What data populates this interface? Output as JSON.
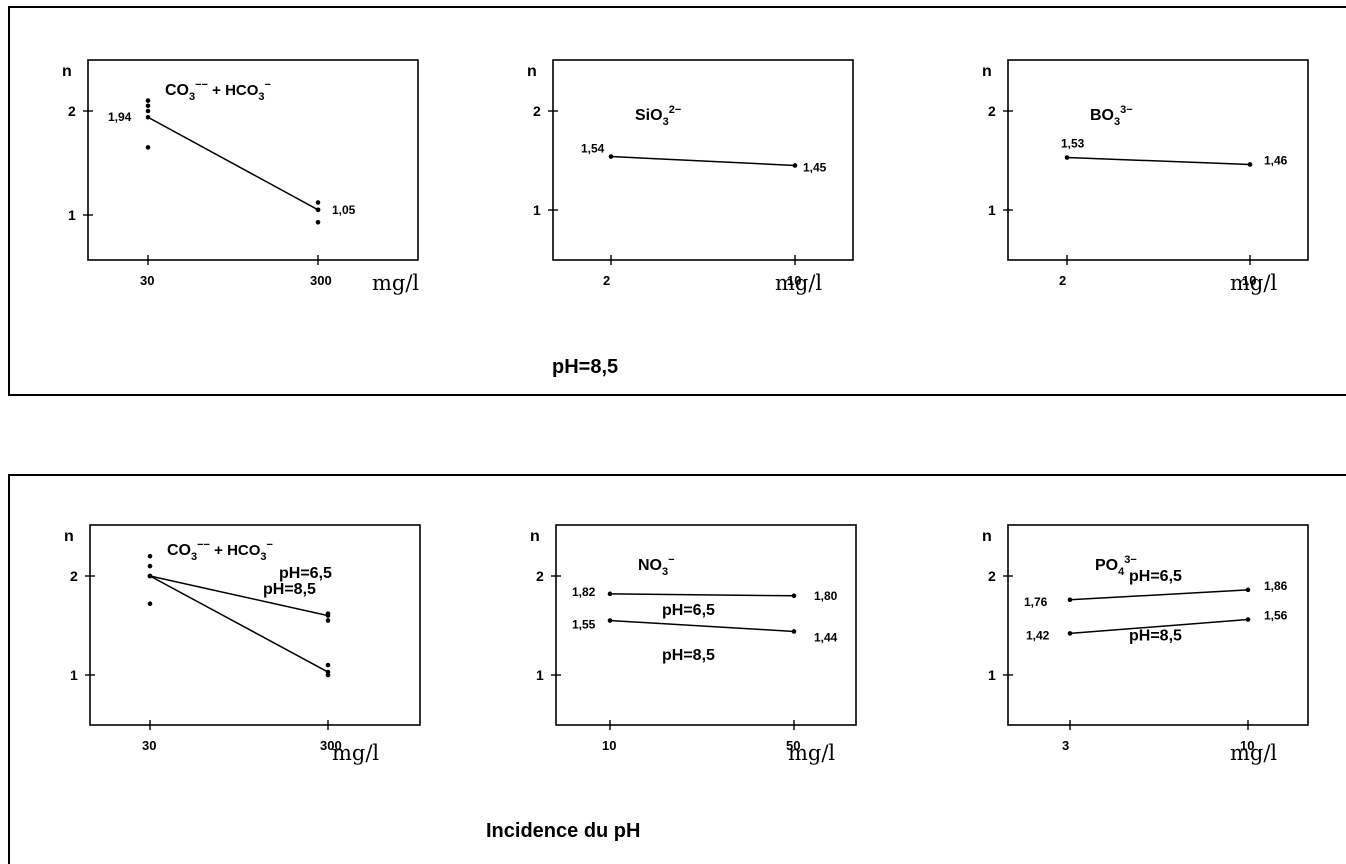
{
  "captions": {
    "top": "pH=8,5",
    "bottom": "Incidence du pH"
  },
  "chart_data": [
    {
      "type": "line",
      "y_label": "n",
      "unit": "mg/l",
      "y_ticks": [
        "1",
        "2"
      ],
      "title_main": "CO",
      "title_sub": "3",
      "title_sup": "−−",
      "title_rest": " + HCO",
      "title_sub2": "3",
      "title_sup2": "−",
      "x_ticks": [
        "30",
        "300"
      ],
      "series": [
        {
          "x": [
            "30",
            "300"
          ],
          "y": [
            1.94,
            1.05
          ],
          "labels": [
            "1,94",
            "1,05"
          ]
        }
      ],
      "replicates": [
        {
          "x": "30",
          "y": [
            2.1,
            2.05,
            2.0,
            1.65
          ]
        },
        {
          "x": "300",
          "y": [
            1.12,
            1.05,
            0.93
          ]
        }
      ]
    },
    {
      "type": "line",
      "y_label": "n",
      "unit": "mg/l",
      "y_ticks": [
        "1",
        "2"
      ],
      "title_main": "SiO",
      "title_sub": "3",
      "title_sup": "2−",
      "x_ticks": [
        "2",
        "10"
      ],
      "series": [
        {
          "x": [
            "2",
            "10"
          ],
          "y": [
            1.54,
            1.45
          ],
          "labels": [
            "1,54",
            "1,45"
          ]
        }
      ]
    },
    {
      "type": "line",
      "y_label": "n",
      "unit": "mg/l",
      "y_ticks": [
        "1",
        "2"
      ],
      "title_main": "BO",
      "title_sub": "3",
      "title_sup": "3−",
      "x_ticks": [
        "2",
        "10"
      ],
      "series": [
        {
          "x": [
            "2",
            "10"
          ],
          "y": [
            1.53,
            1.46
          ],
          "labels": [
            "1,53",
            "1,46"
          ]
        }
      ]
    },
    {
      "type": "line",
      "y_label": "n",
      "unit": "mg/l",
      "y_ticks": [
        "1",
        "2"
      ],
      "title_main": "CO",
      "title_sub": "3",
      "title_sup": "−−",
      "title_rest": " + HCO",
      "title_sub2": "3",
      "title_sup2": "−",
      "x_ticks": [
        "30",
        "300"
      ],
      "series": [
        {
          "name": "pH=6,5",
          "x": [
            "30",
            "300"
          ],
          "y": [
            2.0,
            1.6
          ]
        },
        {
          "name": "pH=8,5",
          "x": [
            "30",
            "300"
          ],
          "y": [
            2.0,
            1.03
          ]
        }
      ],
      "replicates": [
        {
          "x": "30",
          "y": [
            2.2,
            2.1,
            2.0,
            1.72
          ]
        },
        {
          "x": "300",
          "y": [
            1.62,
            1.55,
            1.1,
            1.0
          ]
        }
      ]
    },
    {
      "type": "line",
      "y_label": "n",
      "unit": "mg/l",
      "y_ticks": [
        "1",
        "2"
      ],
      "title_main": "NO",
      "title_sub": "3",
      "title_sup": "−",
      "x_ticks": [
        "10",
        "50"
      ],
      "series": [
        {
          "name": "pH=6,5",
          "x": [
            "10",
            "50"
          ],
          "y": [
            1.82,
            1.8
          ],
          "labels": [
            "1,82",
            "1,80"
          ]
        },
        {
          "name": "pH=8,5",
          "x": [
            "10",
            "50"
          ],
          "y": [
            1.55,
            1.44
          ],
          "labels": [
            "1,55",
            "1,44"
          ]
        }
      ]
    },
    {
      "type": "line",
      "y_label": "n",
      "unit": "mg/l",
      "y_ticks": [
        "1",
        "2"
      ],
      "title_main": "PO",
      "title_sub": "4",
      "title_sup": "3−",
      "x_ticks": [
        "3",
        "10"
      ],
      "series": [
        {
          "name": "pH=6,5",
          "x": [
            "3",
            "10"
          ],
          "y": [
            1.76,
            1.86
          ],
          "labels": [
            "1,76",
            "1,86"
          ]
        },
        {
          "name": "pH=8,5",
          "x": [
            "3",
            "10"
          ],
          "y": [
            1.42,
            1.56
          ],
          "labels": [
            "1,42",
            "1,56"
          ]
        }
      ]
    }
  ]
}
